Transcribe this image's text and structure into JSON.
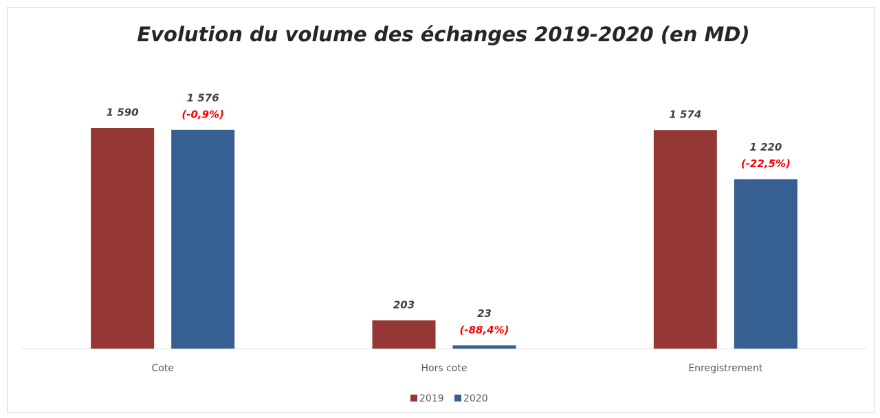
{
  "chart_data": {
    "type": "bar",
    "title": "Evolution  du volume des échanges 2019-2020 (en MD)",
    "categories": [
      "Cote",
      "Hors cote",
      "Enregistrement"
    ],
    "series": [
      {
        "name": "2019",
        "color": "#953735",
        "values": [
          1590,
          203,
          1574
        ],
        "value_labels": [
          "1 590",
          "203",
          "1 574"
        ]
      },
      {
        "name": "2020",
        "color": "#366092",
        "values": [
          1576,
          23,
          1220
        ],
        "value_labels": [
          "1 576",
          "23",
          "1 220"
        ],
        "change_labels": [
          "(-0,9%)",
          "(-88,4%)",
          "(-22,5%)"
        ]
      }
    ]
  }
}
